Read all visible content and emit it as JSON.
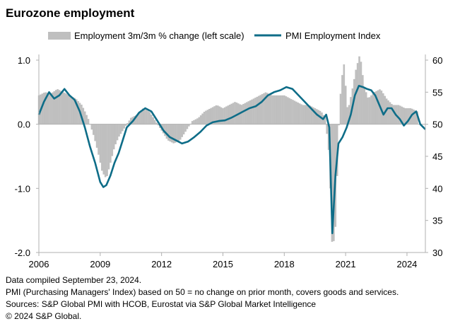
{
  "title": "Eurozone employment",
  "chart_data": {
    "type": "bar+line",
    "title": "Eurozone employment",
    "legend": [
      "Employment 3m/3m % change (left scale)",
      "PMI Employment Index"
    ],
    "left_axis": {
      "ticks": [
        "1.0",
        "0.0",
        "-1.0",
        "-2.0"
      ],
      "range": [
        -2.0,
        1.0
      ]
    },
    "right_axis": {
      "ticks": [
        "60",
        "55",
        "50",
        "45",
        "40",
        "35",
        "30"
      ],
      "range": [
        30,
        60
      ]
    },
    "x_axis": {
      "ticks": [
        "2006",
        "2009",
        "2012",
        "2015",
        "2018",
        "2021",
        "2024"
      ],
      "range": [
        2006.0,
        2024.9
      ]
    },
    "colors": {
      "bars": "#bfbfbf",
      "line": "#0e6d88",
      "axis": "#b0b0b0"
    },
    "employment_3m3m": {
      "x": [
        2006.0,
        2006.3,
        2006.6,
        2006.9,
        2007.2,
        2007.5,
        2007.8,
        2008.1,
        2008.4,
        2008.7,
        2008.9,
        2009.1,
        2009.3,
        2009.5,
        2009.7,
        2009.9,
        2010.2,
        2010.5,
        2010.8,
        2011.1,
        2011.4,
        2011.7,
        2012.0,
        2012.3,
        2012.6,
        2012.9,
        2013.2,
        2013.5,
        2013.8,
        2014.1,
        2014.4,
        2014.7,
        2015.0,
        2015.3,
        2015.6,
        2015.9,
        2016.2,
        2016.5,
        2016.8,
        2017.1,
        2017.4,
        2017.7,
        2018.0,
        2018.3,
        2018.6,
        2018.9,
        2019.2,
        2019.5,
        2019.8,
        2020.0,
        2020.2,
        2020.35,
        2020.5,
        2020.7,
        2020.9,
        2021.1,
        2021.3,
        2021.5,
        2021.7,
        2021.9,
        2022.1,
        2022.4,
        2022.7,
        2023.0,
        2023.3,
        2023.6,
        2023.9,
        2024.2,
        2024.5
      ],
      "values": [
        0.45,
        0.5,
        0.48,
        0.55,
        0.5,
        0.45,
        0.4,
        0.3,
        0.1,
        -0.2,
        -0.45,
        -0.75,
        -0.85,
        -0.6,
        -0.35,
        -0.2,
        -0.05,
        0.1,
        0.15,
        0.25,
        0.2,
        0.05,
        -0.1,
        -0.25,
        -0.3,
        -0.25,
        -0.1,
        0.05,
        0.1,
        0.2,
        0.25,
        0.3,
        0.25,
        0.3,
        0.35,
        0.3,
        0.35,
        0.4,
        0.45,
        0.5,
        0.45,
        0.45,
        0.45,
        0.4,
        0.35,
        0.3,
        0.3,
        0.25,
        0.2,
        0.1,
        -0.5,
        -2.0,
        -1.6,
        0.3,
        1.0,
        0.2,
        0.5,
        0.85,
        1.1,
        0.6,
        0.4,
        0.5,
        0.55,
        0.4,
        0.3,
        0.3,
        0.25,
        0.25,
        0.2
      ]
    },
    "pmi_employment_index": {
      "x": [
        2006.0,
        2006.25,
        2006.5,
        2006.75,
        2007.0,
        2007.25,
        2007.5,
        2007.75,
        2008.0,
        2008.25,
        2008.5,
        2008.75,
        2009.0,
        2009.15,
        2009.3,
        2009.5,
        2009.7,
        2009.9,
        2010.1,
        2010.3,
        2010.6,
        2010.9,
        2011.2,
        2011.5,
        2011.8,
        2012.1,
        2012.4,
        2012.7,
        2013.0,
        2013.3,
        2013.6,
        2013.9,
        2014.2,
        2014.5,
        2014.8,
        2015.1,
        2015.4,
        2015.7,
        2016.0,
        2016.3,
        2016.6,
        2016.9,
        2017.2,
        2017.5,
        2017.8,
        2018.1,
        2018.4,
        2018.7,
        2019.0,
        2019.3,
        2019.6,
        2019.9,
        2020.05,
        2020.2,
        2020.35,
        2020.5,
        2020.65,
        2020.85,
        2021.05,
        2021.25,
        2021.45,
        2021.65,
        2021.85,
        2022.05,
        2022.25,
        2022.45,
        2022.65,
        2022.85,
        2023.05,
        2023.25,
        2023.45,
        2023.65,
        2023.85,
        2024.05,
        2024.25,
        2024.45,
        2024.65,
        2024.9
      ],
      "values": [
        51.5,
        53.5,
        55.0,
        54.0,
        54.5,
        55.5,
        54.5,
        53.8,
        52.0,
        49.5,
        46.5,
        44.0,
        41.0,
        40.2,
        40.5,
        42.0,
        44.0,
        45.5,
        47.5,
        49.5,
        50.5,
        51.8,
        52.5,
        52.0,
        50.5,
        49.0,
        48.0,
        47.5,
        47.0,
        47.3,
        48.0,
        48.8,
        49.8,
        50.3,
        50.5,
        50.6,
        51.0,
        51.5,
        52.0,
        52.5,
        52.8,
        53.5,
        54.5,
        55.0,
        55.3,
        55.8,
        55.5,
        54.5,
        53.5,
        52.5,
        51.5,
        50.8,
        51.5,
        49.5,
        33.0,
        42.0,
        47.0,
        48.0,
        49.5,
        51.5,
        54.5,
        56.0,
        55.8,
        55.5,
        55.3,
        54.5,
        53.0,
        51.5,
        52.5,
        52.5,
        51.5,
        50.8,
        49.8,
        50.5,
        51.5,
        52.0,
        50.0,
        49.2
      ]
    }
  },
  "notes": [
    "Data compiled September 23, 2024.",
    "PMI (Purchasing Managers' Index) based on 50 = no change on prior month, covers goods and services.",
    "Sources: S&P Global PMI with HCOB, Eurostat via S&P Global Market Intelligence",
    "© 2024 S&P Global."
  ]
}
